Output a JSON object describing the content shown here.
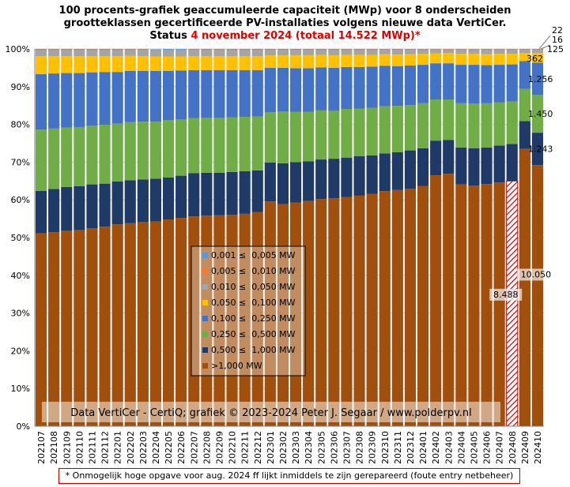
{
  "title": {
    "line1": "100 procents-grafiek geaccumuleerde capaciteit (MWp) voor 8 onderscheiden",
    "line2": "grootteklassen gecertificeerde PV-installaties volgens nieuwe data VertiCer.",
    "status_prefix": "Status ",
    "status_red": "4 november 2024 (totaal 14.522 MWp)*"
  },
  "watermark": "Data VertiCer - CertiQ; grafiek © 2023-2024 Peter J. Segaar / www.polderpv.nl",
  "footnote": "* Onmogelijk hoge opgave voor aug. 2024 ff lijkt inmiddels te zijn gerepareerd (foute entry netbeheer)",
  "chart_data": {
    "type": "bar",
    "stacked": true,
    "percent_stacked": true,
    "categories": [
      "202107",
      "202108",
      "202109",
      "202110",
      "202111",
      "202112",
      "202201",
      "202202",
      "202203",
      "202204",
      "202205",
      "202206",
      "202207",
      "202208",
      "202209",
      "202210",
      "202211",
      "202212",
      "202301",
      "202302",
      "202303",
      "202304",
      "202305",
      "202306",
      "202307",
      "202308",
      "202309",
      "202310",
      "202311",
      "202312",
      "202401",
      "202402",
      "202403",
      "202404",
      "202405",
      "202406",
      "202407",
      "202408",
      "202409",
      "202410"
    ],
    "ylim": [
      0,
      100
    ],
    "yticks": [
      "0%",
      "10%",
      "20%",
      "30%",
      "40%",
      "50%",
      "60%",
      "70%",
      "80%",
      "90%",
      "100%"
    ],
    "grid": true,
    "legend_position": "center",
    "series": [
      {
        "name": ">1,000 MW",
        "color": "#a0500c",
        "values": [
          51.1,
          51.4,
          51.8,
          52.0,
          52.5,
          52.9,
          53.5,
          53.8,
          54.1,
          54.3,
          54.8,
          55.2,
          55.6,
          55.8,
          55.9,
          56.0,
          56.3,
          56.8,
          59.6,
          58.9,
          59.3,
          59.7,
          60.2,
          60.4,
          60.7,
          61.1,
          61.6,
          62.3,
          62.6,
          62.9,
          63.7,
          66.5,
          66.9,
          64.1,
          63.8,
          64.2,
          64.6,
          65.0,
          73.5,
          69.2
        ]
      },
      {
        "name": "0,500 ≤  1,000 MW",
        "color": "#203a68",
        "values": [
          11.3,
          11.5,
          11.6,
          11.6,
          11.6,
          11.4,
          11.4,
          11.4,
          11.3,
          11.3,
          11.1,
          11.2,
          11.5,
          11.4,
          11.3,
          11.4,
          11.3,
          11.0,
          10.3,
          10.8,
          10.7,
          10.5,
          10.5,
          10.5,
          10.5,
          10.5,
          10.2,
          10.0,
          10.0,
          10.2,
          10.0,
          9.2,
          9.0,
          9.8,
          9.9,
          9.7,
          9.8,
          9.8,
          7.4,
          8.6
        ]
      },
      {
        "name": "0,250 ≤  0,500 MW",
        "color": "#70ad47",
        "values": [
          16.2,
          16.0,
          15.8,
          15.7,
          15.6,
          15.6,
          15.3,
          15.4,
          15.3,
          15.1,
          15.2,
          14.9,
          14.6,
          14.6,
          14.6,
          14.5,
          14.4,
          14.3,
          13.3,
          13.7,
          13.3,
          13.1,
          13.0,
          12.7,
          12.9,
          12.6,
          12.6,
          12.5,
          12.3,
          12.0,
          11.9,
          10.9,
          10.7,
          11.7,
          11.8,
          11.7,
          11.4,
          11.3,
          8.5,
          10.0
        ]
      },
      {
        "name": "0,100 ≤  0,250 MW",
        "color": "#4472c4",
        "values": [
          14.7,
          14.6,
          14.4,
          14.3,
          14.1,
          14.0,
          13.7,
          13.6,
          13.5,
          13.5,
          13.1,
          13.0,
          12.7,
          12.6,
          12.6,
          12.5,
          12.4,
          12.3,
          11.8,
          11.6,
          11.6,
          11.6,
          11.4,
          11.4,
          11.1,
          11.0,
          10.9,
          10.7,
          10.5,
          10.5,
          10.2,
          9.6,
          9.6,
          10.2,
          10.3,
          10.1,
          10.0,
          9.8,
          7.4,
          8.6
        ]
      },
      {
        "name": "0,050 ≤  0,100 MW",
        "color": "#ffc000",
        "values": [
          4.8,
          4.6,
          4.5,
          4.5,
          4.3,
          4.2,
          4.2,
          4.0,
          3.9,
          3.8,
          3.8,
          3.7,
          3.7,
          3.7,
          3.7,
          3.7,
          3.7,
          3.7,
          3.3,
          3.3,
          3.4,
          3.4,
          3.3,
          3.3,
          3.2,
          3.2,
          3.1,
          3.1,
          3.1,
          3.0,
          2.9,
          2.6,
          2.7,
          2.9,
          2.9,
          2.9,
          2.9,
          2.8,
          2.1,
          2.5
        ]
      },
      {
        "name": "0,010 ≤  0,050 MW",
        "color": "#a5a5a5",
        "values": [
          1.6,
          1.6,
          1.6,
          1.6,
          1.6,
          1.6,
          1.6,
          1.5,
          1.6,
          1.6,
          1.6,
          1.6,
          1.6,
          1.6,
          1.6,
          1.6,
          1.6,
          1.6,
          1.4,
          1.4,
          1.4,
          1.4,
          1.3,
          1.4,
          1.3,
          1.3,
          1.3,
          1.2,
          1.2,
          1.2,
          1.1,
          1.0,
          1.0,
          1.1,
          1.1,
          1.1,
          1.1,
          1.1,
          0.9,
          0.9
        ]
      },
      {
        "name": "0,005 ≤  0,010 MW",
        "color": "#ed7d31",
        "values": [
          0.2,
          0.2,
          0.2,
          0.2,
          0.2,
          0.2,
          0.2,
          0.2,
          0.2,
          0.2,
          0.2,
          0.2,
          0.2,
          0.2,
          0.2,
          0.2,
          0.2,
          0.2,
          0.2,
          0.2,
          0.2,
          0.2,
          0.2,
          0.2,
          0.2,
          0.2,
          0.2,
          0.1,
          0.2,
          0.1,
          0.1,
          0.1,
          0.1,
          0.1,
          0.1,
          0.2,
          0.1,
          0.1,
          0.1,
          0.1
        ]
      },
      {
        "name": "0,001 ≤  0,005 MW",
        "color": "#5b9bd5",
        "values": [
          0.1,
          0.1,
          0.1,
          0.1,
          0.1,
          0.1,
          0.1,
          0.1,
          0.1,
          0.1,
          0.2,
          0.2,
          0.1,
          0.1,
          0.1,
          0.1,
          0.1,
          0.1,
          0.1,
          0.1,
          0.1,
          0.1,
          0.1,
          0.1,
          0.1,
          0.1,
          0.1,
          0.1,
          0.1,
          0.1,
          0.1,
          0.1,
          0.0,
          0.1,
          0.1,
          0.1,
          0.1,
          0.1,
          0.1,
          0.1
        ]
      }
    ],
    "hatched_bar": {
      "category": "202408",
      "series": ">1,000 MW",
      "pattern_color": "#c00000"
    },
    "annotations": [
      {
        "text": "22",
        "category": "202410",
        "series": "0,001 ≤  0,005 MW"
      },
      {
        "text": "16",
        "category": "202410",
        "series": "0,005 ≤  0,010 MW"
      },
      {
        "text": "125",
        "category": "202410",
        "series": "0,010 ≤  0,050 MW"
      },
      {
        "text": "362",
        "category": "202410",
        "series": "0,050 ≤  0,100 MW"
      },
      {
        "text": "1.256",
        "category": "202410",
        "series": "0,100 ≤  0,250 MW"
      },
      {
        "text": "1.450",
        "category": "202410",
        "series": "0,250 ≤  0,500 MW"
      },
      {
        "text": "1.243",
        "category": "202410",
        "series": "0,500 ≤  1,000 MW"
      },
      {
        "text": "10.050",
        "category": "202410",
        "series": ">1,000 MW"
      },
      {
        "text": "8.488",
        "category": "202408",
        "series": ">1,000 MW"
      }
    ]
  }
}
